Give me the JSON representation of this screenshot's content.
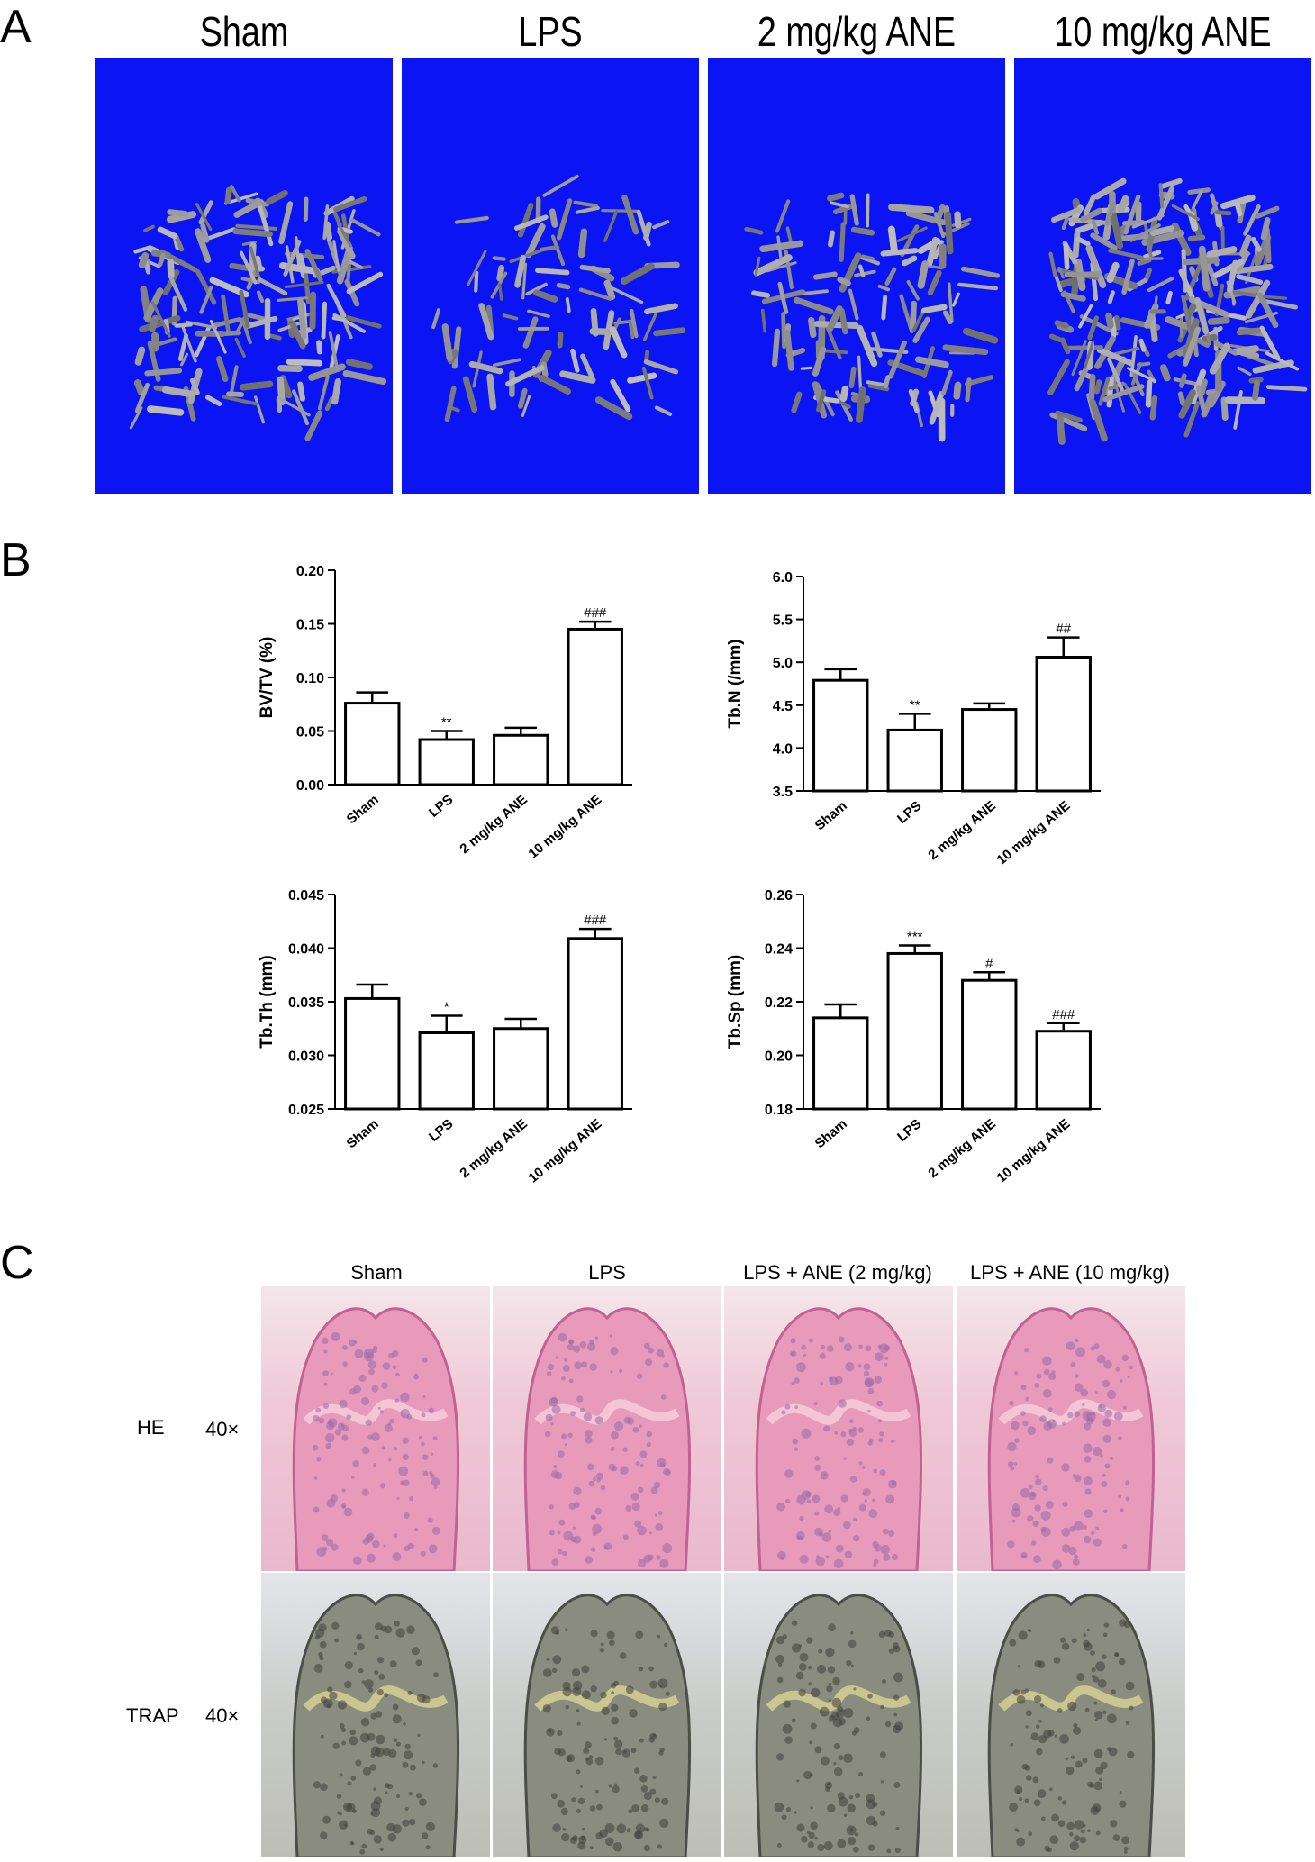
{
  "panels": {
    "a": "A",
    "b": "B",
    "c": "C"
  },
  "microct": {
    "titles": [
      "Sham",
      "LPS",
      "2 mg/kg ANE",
      "10 mg/kg ANE"
    ],
    "background_color": "#0b14f2"
  },
  "chart_data": [
    {
      "type": "bar",
      "categories": [
        "Sham",
        "LPS",
        "2 mg/kg ANE",
        "10 mg/kg ANE"
      ],
      "values": [
        0.076,
        0.042,
        0.046,
        0.145
      ],
      "errors": [
        0.01,
        0.008,
        0.007,
        0.007
      ],
      "annotations": [
        "",
        "**",
        "",
        "###"
      ],
      "ylabel": "BV/TV (%)",
      "ylim": [
        0.0,
        0.2
      ],
      "yticks": [
        "0.00",
        "0.05",
        "0.10",
        "0.15",
        "0.20"
      ]
    },
    {
      "type": "bar",
      "categories": [
        "Sham",
        "LPS",
        "2 mg/kg ANE",
        "10 mg/kg ANE"
      ],
      "values": [
        4.79,
        4.21,
        4.45,
        5.06
      ],
      "errors": [
        0.13,
        0.19,
        0.07,
        0.23
      ],
      "annotations": [
        "",
        "**",
        "",
        "##"
      ],
      "ylabel": "Tb.N (/mm)",
      "ylim": [
        3.5,
        6.0
      ],
      "yticks": [
        "3.5",
        "4.0",
        "4.5",
        "5.0",
        "5.5",
        "6.0"
      ]
    },
    {
      "type": "bar",
      "categories": [
        "Sham",
        "LPS",
        "2 mg/kg ANE",
        "10 mg/kg ANE"
      ],
      "values": [
        0.0353,
        0.0321,
        0.0325,
        0.0409
      ],
      "errors": [
        0.0013,
        0.0016,
        0.0009,
        0.0009
      ],
      "annotations": [
        "",
        "*",
        "",
        "###"
      ],
      "ylabel": "Tb.Th (mm)",
      "ylim": [
        0.025,
        0.045
      ],
      "yticks": [
        "0.025",
        "0.030",
        "0.035",
        "0.040",
        "0.045"
      ]
    },
    {
      "type": "bar",
      "categories": [
        "Sham",
        "LPS",
        "2 mg/kg ANE",
        "10 mg/kg ANE"
      ],
      "values": [
        0.214,
        0.238,
        0.228,
        0.209
      ],
      "errors": [
        0.005,
        0.003,
        0.003,
        0.003
      ],
      "annotations": [
        "",
        "***",
        "#",
        "###"
      ],
      "ylabel": "Tb.Sp (mm)",
      "ylim": [
        0.18,
        0.26
      ],
      "yticks": [
        "0.18",
        "0.20",
        "0.22",
        "0.24",
        "0.26"
      ]
    }
  ],
  "histology": {
    "titles": [
      "Sham",
      "LPS",
      "LPS + ANE (2 mg/kg)",
      "LPS + ANE (10 mg/kg)"
    ],
    "rows": [
      {
        "stain": "HE",
        "magnification": "40×"
      },
      {
        "stain": "TRAP",
        "magnification": "40×"
      }
    ]
  }
}
